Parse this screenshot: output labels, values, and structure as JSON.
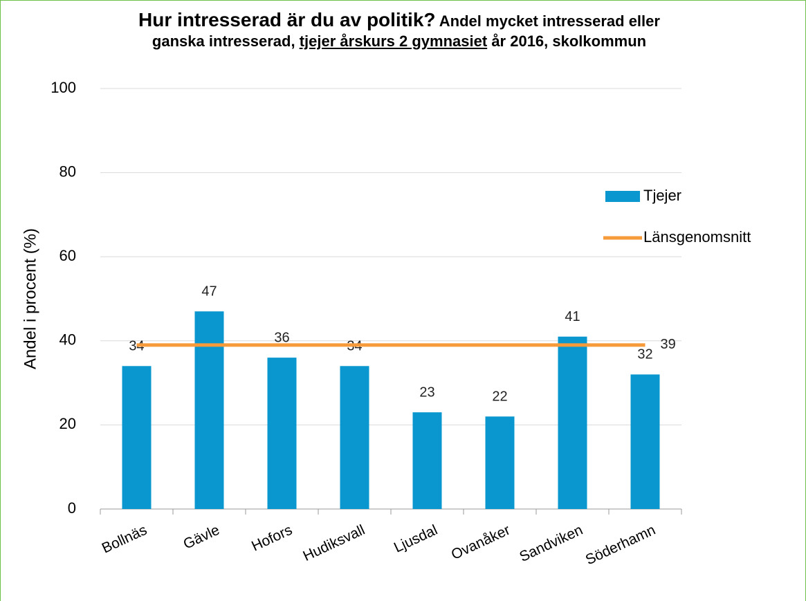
{
  "chart_data": {
    "type": "bar",
    "title": "Hur intresserad är du av politik?",
    "subtitle": "Andel mycket intresserad eller ganska intresserad,",
    "subtitle_highlight": "tjejer årskurs 2 gymnasiet",
    "subtitle_end": "år 2016, skolkommun",
    "y_label": "Andel i procent (%)",
    "categories": [
      "Bollnäs",
      "Gävle",
      "Hofors",
      "Hudiksvall",
      "Ljusdal",
      "Ovanåker",
      "Sandviken",
      "Söderhamn"
    ],
    "series": [
      {
        "name": "Tjejer",
        "type": "bar",
        "color": "#0a97cf",
        "values": [
          34,
          47,
          36,
          34,
          23,
          22,
          41,
          32
        ]
      },
      {
        "name": "Länsgenomsnitt",
        "type": "line",
        "color": "#f79a3a",
        "values": [
          39,
          39,
          39,
          39,
          39,
          39,
          39,
          39
        ]
      }
    ],
    "ylim": [
      0,
      100
    ],
    "yticks": [
      0,
      20,
      40,
      60,
      80,
      100
    ],
    "grid": true,
    "legend": "right"
  }
}
